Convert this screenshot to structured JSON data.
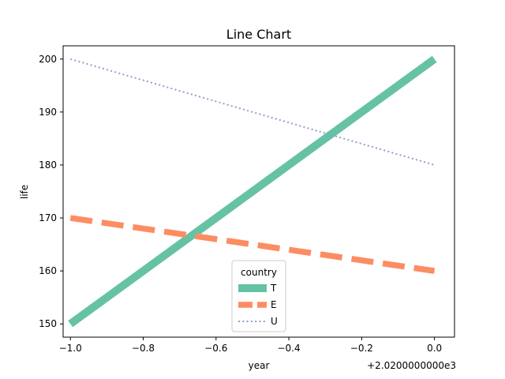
{
  "chart_data": {
    "type": "line",
    "title": "Line Chart",
    "xlabel": "year",
    "ylabel": "life",
    "x_offset_label": "+2.0200000000e3",
    "x_ticks": [
      "−1.0",
      "−0.8",
      "−0.6",
      "−0.4",
      "−0.2",
      "0.0"
    ],
    "y_ticks": [
      "150",
      "160",
      "170",
      "180",
      "190",
      "200"
    ],
    "xlim": [
      -1.02,
      0.055
    ],
    "ylim": [
      147.5,
      202.5
    ],
    "grid": false,
    "legend": {
      "title": "country",
      "placement": "lower-center"
    },
    "series": [
      {
        "name": "T",
        "x": [
          -1.0,
          0.0
        ],
        "y": [
          150,
          200
        ],
        "color": "#66c2a5",
        "style": "solid"
      },
      {
        "name": "E",
        "x": [
          -1.0,
          0.0
        ],
        "y": [
          170,
          160
        ],
        "color": "#fc8d62",
        "style": "dashed"
      },
      {
        "name": "U",
        "x": [
          -1.0,
          0.0
        ],
        "y": [
          200,
          180
        ],
        "color": "#8da0cb",
        "style": "dotted"
      }
    ]
  }
}
